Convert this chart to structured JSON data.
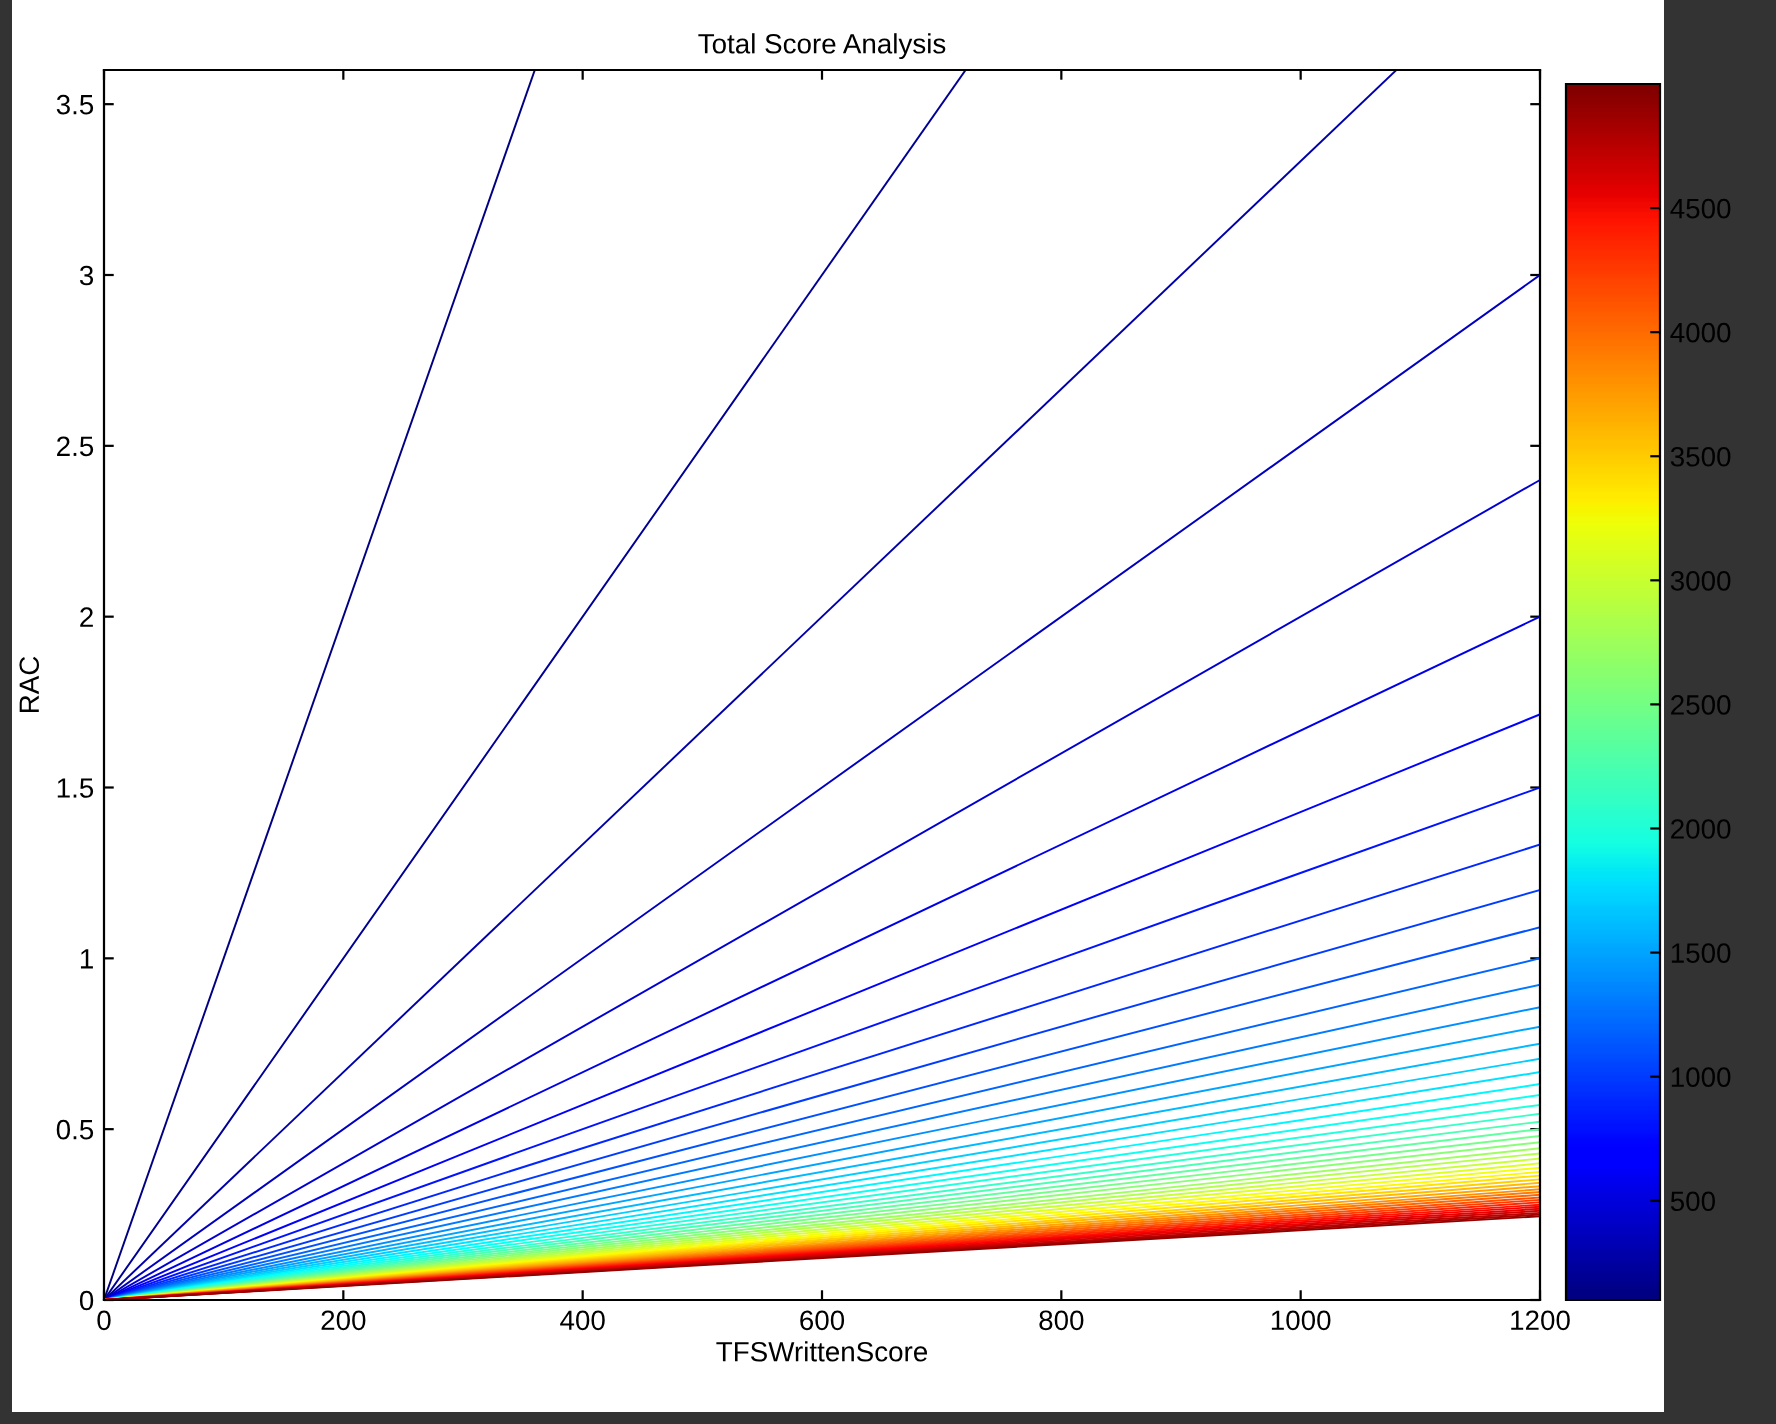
{
  "chart_data": {
    "type": "line",
    "title": "Total Score Analysis",
    "xlabel": "TFSWrittenScore",
    "ylabel": "RAC",
    "xlim": [
      0,
      1200
    ],
    "xticks": [
      0,
      200,
      400,
      600,
      800,
      1000,
      1200
    ],
    "ylim": [
      0,
      3.6
    ],
    "yticks": [
      0,
      0.5,
      1,
      1.5,
      2,
      2.5,
      3,
      3.5
    ],
    "grid": false,
    "clim": [
      100,
      5000
    ],
    "cticks": [
      500,
      1000,
      1500,
      2000,
      2500,
      3000,
      3500,
      4000,
      4500
    ],
    "series": [
      {
        "color": "#000080",
        "x": [
          0,
          360
        ],
        "values": [
          0,
          3.6
        ]
      },
      {
        "color": "#000094",
        "x": [
          0,
          720
        ],
        "values": [
          0,
          3.6
        ]
      },
      {
        "color": "#0000a9",
        "x": [
          0,
          1080
        ],
        "values": [
          0,
          3.6
        ]
      },
      {
        "color": "#0000be",
        "x": [
          0,
          1200
        ],
        "values": [
          0,
          3
        ]
      },
      {
        "color": "#0000d3",
        "x": [
          0,
          1200
        ],
        "values": [
          0,
          2.4
        ]
      },
      {
        "color": "#0000e8",
        "x": [
          0,
          1200
        ],
        "values": [
          0,
          2
        ]
      },
      {
        "color": "#0000fc",
        "x": [
          0,
          1200
        ],
        "values": [
          0,
          1.714
        ]
      },
      {
        "color": "#0012ff",
        "x": [
          0,
          1200
        ],
        "values": [
          0,
          1.5
        ]
      },
      {
        "color": "#0027ff",
        "x": [
          0,
          1200
        ],
        "values": [
          0,
          1.333
        ]
      },
      {
        "color": "#003cff",
        "x": [
          0,
          1200
        ],
        "values": [
          0,
          1.2
        ]
      },
      {
        "color": "#0051ff",
        "x": [
          0,
          1200
        ],
        "values": [
          0,
          1.091
        ]
      },
      {
        "color": "#0065ff",
        "x": [
          0,
          1200
        ],
        "values": [
          0,
          1
        ]
      },
      {
        "color": "#007aff",
        "x": [
          0,
          1200
        ],
        "values": [
          0,
          0.923
        ]
      },
      {
        "color": "#008fff",
        "x": [
          0,
          1200
        ],
        "values": [
          0,
          0.857
        ]
      },
      {
        "color": "#00a4ff",
        "x": [
          0,
          1200
        ],
        "values": [
          0,
          0.8
        ]
      },
      {
        "color": "#00b9ff",
        "x": [
          0,
          1200
        ],
        "values": [
          0,
          0.75
        ]
      },
      {
        "color": "#00ceff",
        "x": [
          0,
          1200
        ],
        "values": [
          0,
          0.706
        ]
      },
      {
        "color": "#00e2ff",
        "x": [
          0,
          1200
        ],
        "values": [
          0,
          0.667
        ]
      },
      {
        "color": "#00f7ff",
        "x": [
          0,
          1200
        ],
        "values": [
          0,
          0.632
        ]
      },
      {
        "color": "#0dfff2",
        "x": [
          0,
          1200
        ],
        "values": [
          0,
          0.6
        ]
      },
      {
        "color": "#22ffdd",
        "x": [
          0,
          1200
        ],
        "values": [
          0,
          0.571
        ]
      },
      {
        "color": "#37ffc8",
        "x": [
          0,
          1200
        ],
        "values": [
          0,
          0.545
        ]
      },
      {
        "color": "#4bffb4",
        "x": [
          0,
          1200
        ],
        "values": [
          0,
          0.522
        ]
      },
      {
        "color": "#60ff9f",
        "x": [
          0,
          1200
        ],
        "values": [
          0,
          0.5
        ]
      },
      {
        "color": "#75ff8a",
        "x": [
          0,
          1200
        ],
        "values": [
          0,
          0.48
        ]
      },
      {
        "color": "#8aff75",
        "x": [
          0,
          1200
        ],
        "values": [
          0,
          0.462
        ]
      },
      {
        "color": "#9fff60",
        "x": [
          0,
          1200
        ],
        "values": [
          0,
          0.444
        ]
      },
      {
        "color": "#b4ff4b",
        "x": [
          0,
          1200
        ],
        "values": [
          0,
          0.429
        ]
      },
      {
        "color": "#c8ff37",
        "x": [
          0,
          1200
        ],
        "values": [
          0,
          0.414
        ]
      },
      {
        "color": "#ddff22",
        "x": [
          0,
          1200
        ],
        "values": [
          0,
          0.4
        ]
      },
      {
        "color": "#f2ff0d",
        "x": [
          0,
          1200
        ],
        "values": [
          0,
          0.387
        ]
      },
      {
        "color": "#fff700",
        "x": [
          0,
          1200
        ],
        "values": [
          0,
          0.375
        ]
      },
      {
        "color": "#ffe200",
        "x": [
          0,
          1200
        ],
        "values": [
          0,
          0.364
        ]
      },
      {
        "color": "#ffce00",
        "x": [
          0,
          1200
        ],
        "values": [
          0,
          0.353
        ]
      },
      {
        "color": "#ffb900",
        "x": [
          0,
          1200
        ],
        "values": [
          0,
          0.343
        ]
      },
      {
        "color": "#ffa400",
        "x": [
          0,
          1200
        ],
        "values": [
          0,
          0.333
        ]
      },
      {
        "color": "#ff8f00",
        "x": [
          0,
          1200
        ],
        "values": [
          0,
          0.324
        ]
      },
      {
        "color": "#ff7a00",
        "x": [
          0,
          1200
        ],
        "values": [
          0,
          0.316
        ]
      },
      {
        "color": "#ff6500",
        "x": [
          0,
          1200
        ],
        "values": [
          0,
          0.308
        ]
      },
      {
        "color": "#ff5100",
        "x": [
          0,
          1200
        ],
        "values": [
          0,
          0.3
        ]
      },
      {
        "color": "#ff3c00",
        "x": [
          0,
          1200
        ],
        "values": [
          0,
          0.293
        ]
      },
      {
        "color": "#ff2700",
        "x": [
          0,
          1200
        ],
        "values": [
          0,
          0.286
        ]
      },
      {
        "color": "#ff1200",
        "x": [
          0,
          1200
        ],
        "values": [
          0,
          0.279
        ]
      },
      {
        "color": "#fc0000",
        "x": [
          0,
          1200
        ],
        "values": [
          0,
          0.273
        ]
      },
      {
        "color": "#e80000",
        "x": [
          0,
          1200
        ],
        "values": [
          0,
          0.267
        ]
      },
      {
        "color": "#d30000",
        "x": [
          0,
          1200
        ],
        "values": [
          0,
          0.261
        ]
      },
      {
        "color": "#be0000",
        "x": [
          0,
          1200
        ],
        "values": [
          0,
          0.255
        ]
      },
      {
        "color": "#a90000",
        "x": [
          0,
          1200
        ],
        "values": [
          0,
          0.25
        ]
      },
      {
        "color": "#940000",
        "x": [
          0,
          1200
        ],
        "values": [
          0,
          0.245
        ]
      }
    ]
  }
}
